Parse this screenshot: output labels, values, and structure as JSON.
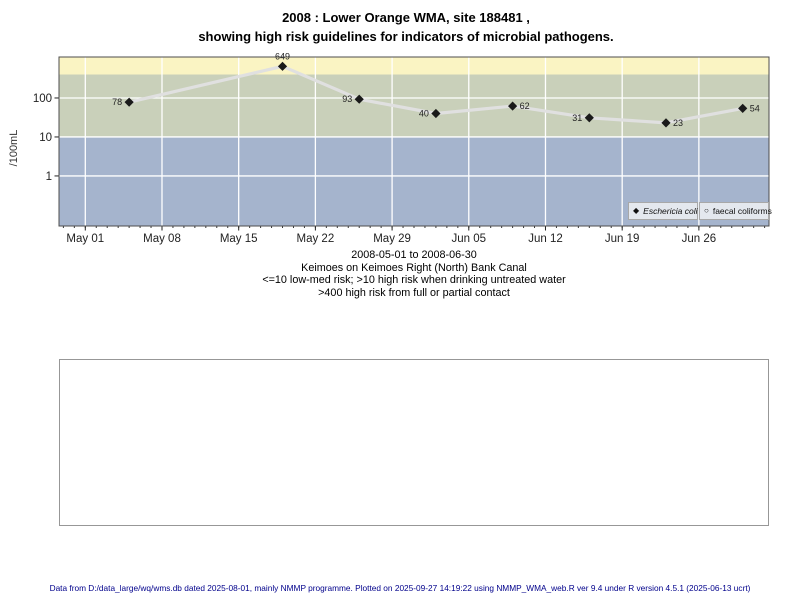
{
  "title": {
    "line1": "2008 : Lower Orange WMA, site 188481 ,",
    "line2": "showing high risk guidelines for indicators of microbial pathogens."
  },
  "subtitle": {
    "lines": [
      "2008-05-01 to 2008-06-30",
      "Keimoes on Keimoes Right (North) Bank Canal",
      "<=10 low-med risk; >10 high risk when drinking untreated water",
      ">400 high risk from full or partial contact"
    ]
  },
  "legend": {
    "items": [
      {
        "marker": "◆",
        "label": "Eschericia coli",
        "italic": true
      },
      {
        "marker": "○",
        "label": "faecal coliforms",
        "italic": false
      }
    ]
  },
  "footer": {
    "text": "Data from D:/data_large/wq/wms.db dated 2025-08-01, mainly NMMP programme. Plotted on 2025-09-27 14:19:22 using NMMP_WMA_web.R ver 9.4 under R version 4.5.1 (2025-06-13 ucrt)"
  },
  "chart_data": {
    "type": "line",
    "title": "2008 : Lower Orange WMA, site 188481 , showing high risk guidelines for indicators of microbial pathogens.",
    "ylabel": "/100mL",
    "y_scale": "log",
    "ylim": [
      0.052,
      1125
    ],
    "x_range_days": [
      -2.4,
      62.4
    ],
    "x_epoch": "2008-05-01",
    "grid": true,
    "grid_color": "#ffffff",
    "line_color": "#e0e0e0",
    "point_color": "#1a1a1a",
    "series": [
      {
        "name": "Eschericia coli",
        "marker": "filled-diamond",
        "dates": [
          "2008-05-05",
          "2008-05-19",
          "2008-05-26",
          "2008-06-02",
          "2008-06-09",
          "2008-06-16",
          "2008-06-23",
          "2008-06-30"
        ],
        "days": [
          4,
          18,
          25,
          32,
          39,
          46,
          53,
          60
        ],
        "values": [
          78,
          649,
          93,
          40,
          62,
          31,
          23,
          54
        ],
        "label_side": [
          "left",
          "above",
          "left",
          "left",
          "right",
          "left",
          "right",
          "right"
        ]
      },
      {
        "name": "faecal coliforms",
        "marker": "open-circle",
        "dates": [],
        "days": [],
        "values": []
      }
    ],
    "x_ticks": {
      "days": [
        0,
        7,
        14,
        21,
        28,
        35,
        42,
        49,
        56
      ],
      "labels": [
        "May 01",
        "May 08",
        "May 15",
        "May 22",
        "May 29",
        "Jun 05",
        "Jun 12",
        "Jun 19",
        "Jun 26"
      ]
    },
    "y_ticks": {
      "values": [
        1,
        10,
        100
      ],
      "labels": [
        "1",
        "10",
        "100"
      ]
    },
    "bands": [
      {
        "label": "low-med risk",
        "to": 10,
        "color": "#a5b4cd"
      },
      {
        "label": "high risk when drinking untreated water",
        "from": 10,
        "to": 400,
        "color": "#c9d0ba"
      },
      {
        "label": "high risk from full or partial contact",
        "from": 400,
        "color": "#faf4c3"
      }
    ],
    "legend_position": "bottom-right-inside"
  }
}
